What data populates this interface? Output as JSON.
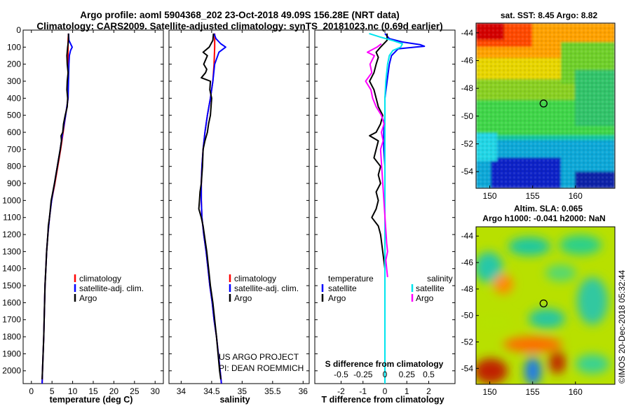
{
  "figure": {
    "title_line1": "Argo profile: aoml 5904368_202 23-Oct-2018 49.09S 156.28E (NRT data)",
    "title_line2": "Climatology: CARS2009. Satellite-adjusted climatology: synTS_20181023.nc (0.69d earlier)",
    "credit_line1": "US ARGO PROJECT",
    "credit_line2": "PI: DEAN ROEMMICH",
    "watermark": "©IMOS 20-Dec-2018 05:32:44"
  },
  "colors": {
    "argo": "#000000",
    "climatology": "#ff0000",
    "satellite": "#0000ff",
    "salinity_clim": "#00e5ee",
    "salinity_argo": "#ff00ff"
  },
  "chart_data": [
    {
      "id": "temperature",
      "type": "line",
      "xlabel": "temperature (deg C)",
      "xlim": [
        -2,
        32
      ],
      "ylim": [
        0,
        2075
      ],
      "yticks": [
        0,
        100,
        200,
        300,
        400,
        500,
        600,
        700,
        800,
        900,
        1000,
        1100,
        1200,
        1300,
        1400,
        1500,
        1600,
        1700,
        1800,
        1900,
        2000
      ],
      "xticks": [
        0,
        5,
        10,
        15,
        20,
        25,
        30
      ],
      "xtick_labels": [
        "0",
        "5",
        "10",
        "15",
        "20",
        "25",
        "30"
      ],
      "legend": [
        "climatology",
        "satellite-adj. clim.",
        "Argo"
      ],
      "series": [
        {
          "name": "climatology",
          "color": "#ff0000",
          "depth": [
            20,
            60,
            100,
            200,
            300,
            400,
            500,
            600,
            700,
            800,
            900,
            1000,
            1100,
            1200,
            1300,
            1400,
            1500,
            1600,
            1800,
            2000,
            2075
          ],
          "values": [
            9.0,
            8.9,
            8.9,
            8.9,
            8.9,
            8.9,
            8.3,
            7.7,
            7.1,
            6.4,
            5.7,
            4.9,
            4.4,
            4.0,
            3.7,
            3.5,
            3.3,
            3.2,
            3.0,
            2.7,
            2.6
          ]
        },
        {
          "name": "satellite-adj. clim.",
          "color": "#0000ff",
          "depth": [
            20,
            60,
            90,
            100,
            120,
            150,
            200,
            300,
            400,
            500,
            600,
            700,
            800,
            900,
            1000,
            1100,
            1200,
            1300,
            1400,
            1500,
            1600,
            1800,
            2000,
            2075
          ],
          "values": [
            9.0,
            9.1,
            9.7,
            9.9,
            9.5,
            9.2,
            9.1,
            9.0,
            8.9,
            8.3,
            7.6,
            7.0,
            6.3,
            5.6,
            4.9,
            4.4,
            4.0,
            3.7,
            3.5,
            3.3,
            3.2,
            3.0,
            2.7,
            2.6
          ]
        },
        {
          "name": "Argo",
          "color": "#000000",
          "depth": [
            20,
            60,
            100,
            150,
            200,
            250,
            300,
            350,
            400,
            450,
            500,
            550,
            600,
            620,
            650,
            700,
            800,
            900,
            1000,
            1100,
            1150,
            1200,
            1300,
            1400,
            1500,
            1600,
            1800,
            2000,
            2050
          ],
          "values": [
            9.0,
            9.0,
            8.8,
            8.6,
            8.7,
            8.9,
            8.7,
            8.6,
            8.8,
            8.7,
            8.2,
            7.8,
            7.6,
            7.2,
            7.3,
            7.0,
            6.3,
            5.6,
            4.8,
            4.4,
            4.1,
            4.0,
            3.7,
            3.5,
            3.3,
            3.2,
            3.0,
            2.7,
            2.6
          ]
        }
      ]
    },
    {
      "id": "salinity",
      "type": "line",
      "xlabel": "salinity",
      "xlim": [
        33.8,
        36.1
      ],
      "ylim": [
        0,
        2075
      ],
      "xticks": [
        34,
        34.5,
        35,
        35.5,
        36
      ],
      "xtick_labels": [
        "34",
        "34.5",
        "35",
        "35.5",
        "36"
      ],
      "legend": [
        "climatology",
        "satellite-adj. clim.",
        "Argo"
      ],
      "series": [
        {
          "name": "climatology",
          "color": "#ff0000",
          "depth": [
            20,
            100,
            200,
            300,
            400,
            500,
            600,
            700,
            800,
            900,
            1000,
            1100,
            1200,
            1300,
            1400,
            1500,
            1600,
            1700,
            1800,
            1900,
            2000,
            2075
          ],
          "values": [
            34.55,
            34.55,
            34.54,
            34.52,
            34.48,
            34.43,
            34.39,
            34.36,
            34.34,
            34.33,
            34.33,
            34.34,
            34.37,
            34.41,
            34.44,
            34.47,
            34.51,
            34.54,
            34.58,
            34.61,
            34.64,
            34.66
          ]
        },
        {
          "name": "satellite-adj. clim.",
          "color": "#0000ff",
          "depth": [
            20,
            50,
            80,
            100,
            130,
            200,
            300,
            400,
            500,
            600,
            700,
            800,
            900,
            1000,
            1100,
            1200,
            1300,
            1400,
            1500,
            1600,
            1700,
            1800,
            1900,
            2000,
            2075
          ],
          "values": [
            34.54,
            34.57,
            34.65,
            34.73,
            34.62,
            34.55,
            34.52,
            34.48,
            34.43,
            34.39,
            34.36,
            34.34,
            34.33,
            34.33,
            34.34,
            34.37,
            34.41,
            34.44,
            34.47,
            34.51,
            34.54,
            34.58,
            34.61,
            34.64,
            34.66
          ]
        },
        {
          "name": "Argo",
          "color": "#000000",
          "depth": [
            20,
            60,
            100,
            130,
            150,
            200,
            230,
            250,
            280,
            300,
            350,
            400,
            450,
            500,
            550,
            600,
            650,
            700,
            800,
            900,
            950,
            1000,
            1050,
            1100,
            1150,
            1200,
            1300,
            1400,
            1500,
            1600,
            1800,
            2000,
            2050
          ],
          "values": [
            34.53,
            34.52,
            34.46,
            34.36,
            34.43,
            34.37,
            34.42,
            34.4,
            34.33,
            34.48,
            34.47,
            34.5,
            34.49,
            34.48,
            34.45,
            34.43,
            34.39,
            34.36,
            34.35,
            34.33,
            34.31,
            34.3,
            34.29,
            34.33,
            34.36,
            34.38,
            34.42,
            34.45,
            34.48,
            34.52,
            34.58,
            34.63,
            34.65
          ]
        }
      ]
    },
    {
      "id": "differences",
      "type": "line",
      "xlabel": "T difference from climatology",
      "xlim": [
        -3.2,
        3.2
      ],
      "ylim": [
        0,
        2075
      ],
      "xticks": [
        -2,
        -1,
        0,
        1,
        2
      ],
      "xtick_labels": [
        "-2",
        "-1",
        "0",
        "1",
        "2"
      ],
      "secondary_axis_label": "S difference from climatology",
      "secondary_ticks": [
        -0.5,
        -0.25,
        0,
        0.25,
        0.5
      ],
      "secondary_tick_labels": [
        "-0.5",
        "-0.25",
        "0",
        "0.25",
        "0.5"
      ],
      "legend": {
        "temperature_header": "temperature",
        "salinity_header": "salinity",
        "items": [
          "satellite",
          "Argo",
          "satellite",
          "Argo"
        ]
      },
      "series": [
        {
          "name": "T satellite",
          "color": "#0000ff",
          "depth": [
            20,
            50,
            70,
            85,
            95,
            100,
            110,
            150,
            200,
            300,
            400,
            500,
            600,
            700,
            800,
            1000,
            1200,
            1500,
            2075
          ],
          "values": [
            0.0,
            0.2,
            0.8,
            1.6,
            1.8,
            1.4,
            0.6,
            0.3,
            0.2,
            0.1,
            0.0,
            0.0,
            -0.05,
            -0.05,
            0.0,
            0.0,
            0.0,
            0.0,
            0.0
          ]
        },
        {
          "name": "T Argo",
          "color": "#000000",
          "depth": [
            20,
            60,
            100,
            130,
            160,
            200,
            250,
            300,
            350,
            400,
            450,
            500,
            550,
            600,
            620,
            650,
            700,
            750,
            800,
            850,
            900,
            950,
            1000,
            1050,
            1100,
            1150,
            1200,
            1300,
            1400,
            1500,
            1700,
            2050
          ],
          "values": [
            0.1,
            0.1,
            -0.2,
            -0.4,
            -0.3,
            -0.4,
            -0.5,
            -0.7,
            -0.5,
            -0.4,
            -0.3,
            -0.1,
            -0.2,
            -0.4,
            -0.7,
            -0.3,
            -0.4,
            -0.5,
            -0.2,
            -0.3,
            -0.2,
            -0.4,
            -0.3,
            -0.4,
            -0.6,
            -0.3,
            -0.2,
            -0.1,
            0.0,
            0.0,
            0.0,
            0.0
          ]
        },
        {
          "name": "S satellite",
          "color": "#00e5ee",
          "depth": [
            20,
            40,
            60,
            80,
            100,
            120,
            150,
            200,
            300,
            400,
            500,
            600,
            700,
            800,
            1000,
            1200,
            1400,
            1500,
            1600,
            2075
          ],
          "values": [
            -0.18,
            -0.06,
            0.08,
            0.2,
            0.18,
            0.09,
            0.05,
            0.03,
            0.01,
            0.0,
            0.0,
            0.0,
            0.0,
            0.0,
            0.0,
            0.0,
            0.0,
            0.0,
            0.0,
            0.0
          ]
        },
        {
          "name": "S Argo",
          "color": "#ff00ff",
          "depth": [
            80,
            100,
            130,
            150,
            200,
            250,
            300,
            350,
            400,
            450,
            500,
            550,
            600,
            650,
            700,
            1250,
            1300,
            1350,
            1400,
            1450
          ],
          "values": [
            -0.04,
            -0.09,
            -0.2,
            -0.12,
            -0.17,
            -0.15,
            -0.22,
            -0.16,
            -0.14,
            -0.1,
            -0.04,
            -0.01,
            -0.04,
            -0.02,
            -0.05,
            0.02,
            0.03,
            0.01,
            0.02,
            0.03
          ]
        }
      ]
    },
    {
      "id": "sst_map",
      "type": "heatmap",
      "title": "sat. SST: 8.45 Argo: 8.82",
      "x_ticks": [
        150,
        155,
        160
      ],
      "y_ticks": [
        -44,
        -46,
        -48,
        -50,
        -52,
        -54
      ],
      "xlim": [
        148.4,
        164.6
      ],
      "ylim": [
        -55.2,
        -43.3
      ],
      "profile_marker": [
        156.28,
        -49.09
      ]
    },
    {
      "id": "sla_map",
      "type": "heatmap",
      "title_line1": "Altim. SLA: 0.065",
      "title_line2": "Argo h1000: -0.041 h2000: NaN",
      "x_ticks": [
        150,
        155,
        160
      ],
      "y_ticks": [
        -44,
        -46,
        -48,
        -50,
        -52,
        -54
      ],
      "xlim": [
        148.4,
        164.6
      ],
      "ylim": [
        -55.2,
        -43.3
      ],
      "profile_marker": [
        156.28,
        -49.09
      ]
    }
  ]
}
